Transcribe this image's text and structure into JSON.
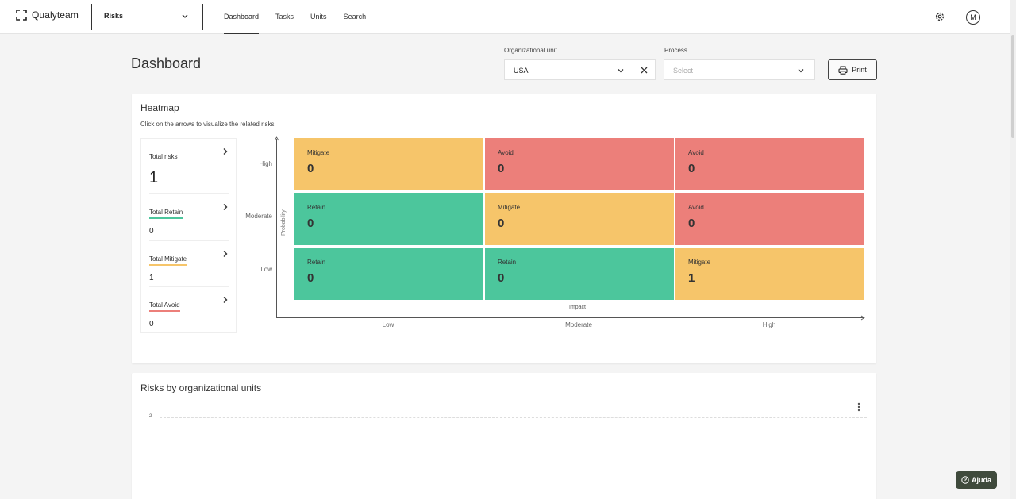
{
  "header": {
    "brand": "Qualyteam",
    "module": "Risks",
    "nav": [
      "Dashboard",
      "Tasks",
      "Units",
      "Search"
    ],
    "active_nav": "Dashboard",
    "avatar_initial": "M"
  },
  "page": {
    "title": "Dashboard",
    "filters": {
      "org_unit_label": "Organizational unit",
      "org_unit_value": "USA",
      "process_label": "Process",
      "process_placeholder": "Select"
    },
    "print_label": "Print"
  },
  "heatmap": {
    "title": "Heatmap",
    "subtitle": "Click on the arrows to visualize the related risks",
    "summary": [
      {
        "label": "Total risks",
        "value": "1"
      },
      {
        "label": "Total Retain",
        "value": "0",
        "color": "#4cc69c"
      },
      {
        "label": "Total Mitigate",
        "value": "1",
        "color": "#f6c56a"
      },
      {
        "label": "Total Avoid",
        "value": "0",
        "color": "#ec7f7a"
      }
    ],
    "y_axis_title": "Probability",
    "x_axis_title": "Impact",
    "y_ticks": [
      "High",
      "Moderate",
      "Low"
    ],
    "x_ticks": [
      "Low",
      "Moderate",
      "High"
    ],
    "cells": [
      [
        {
          "label": "Mitigate",
          "count": "0"
        },
        {
          "label": "Avoid",
          "count": "0"
        },
        {
          "label": "Avoid",
          "count": "0"
        }
      ],
      [
        {
          "label": "Retain",
          "count": "0"
        },
        {
          "label": "Mitigate",
          "count": "0"
        },
        {
          "label": "Avoid",
          "count": "0"
        }
      ],
      [
        {
          "label": "Retain",
          "count": "0"
        },
        {
          "label": "Retain",
          "count": "0"
        },
        {
          "label": "Mitigate",
          "count": "1"
        }
      ]
    ],
    "colors": {
      "Retain": "#4cc69c",
      "Mitigate": "#f6c56a",
      "Avoid": "#ec7f7a"
    }
  },
  "units_chart": {
    "title": "Risks by organizational units",
    "y_tick": "2"
  },
  "help": {
    "label": "Ajuda"
  }
}
